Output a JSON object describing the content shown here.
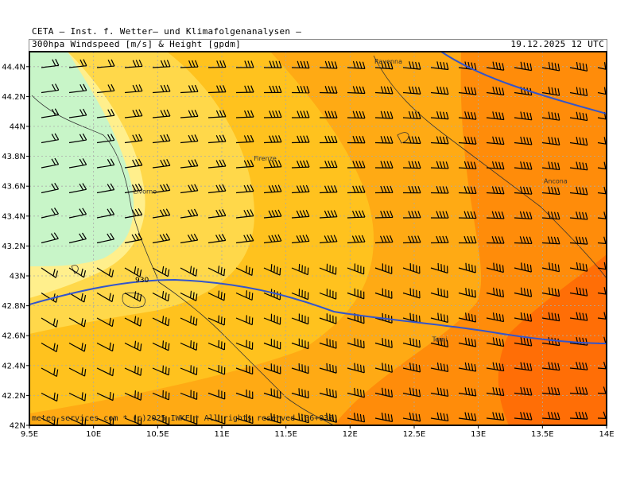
{
  "header": {
    "line1": "CETA — Inst. f. Wetter— und Klimafolgenanalysen —",
    "line2": "300hpa Windspeed [m/s] & Height [gpdm]",
    "valid_time": "19.12.2025 12 UTC"
  },
  "footer": {
    "copyright": "meteo-services.com * (c)2025 IWKF * All rights reserved (06+030)"
  },
  "axes": {
    "lon_min": 9.5,
    "lon_max": 14.0,
    "lat_min": 42.0,
    "lat_max": 44.5,
    "x_ticks": [
      "9.5E",
      "10E",
      "10.5E",
      "11E",
      "11.5E",
      "12E",
      "12.5E",
      "13E",
      "13.5E",
      "14E"
    ],
    "y_ticks": [
      "42N",
      "42.2N",
      "42.4N",
      "42.6N",
      "42.8N",
      "43N",
      "43.2N",
      "43.4N",
      "43.6N",
      "43.8N",
      "44N",
      "44.2N",
      "44.4N"
    ],
    "grid": true
  },
  "contour": {
    "label": "930",
    "color": "#3355cc"
  },
  "cities": [
    {
      "name": "Ravenna",
      "lon": 12.19,
      "lat": 44.42
    },
    {
      "name": "Firenze",
      "lon": 11.25,
      "lat": 43.77
    },
    {
      "name": "Livorno",
      "lon": 10.31,
      "lat": 43.55
    },
    {
      "name": "Ancona",
      "lon": 13.51,
      "lat": 43.62
    },
    {
      "name": "Terni",
      "lon": 12.64,
      "lat": 42.56
    }
  ],
  "wind_colors": {
    "pale_green": "#c8f5c8",
    "pale_yellow": "#ffef8c",
    "yellow": "#ffd84a",
    "gold": "#ffc21e",
    "light_orange": "#ffaa14",
    "orange": "#ff8c0a",
    "dark_orange": "#ff6400"
  }
}
